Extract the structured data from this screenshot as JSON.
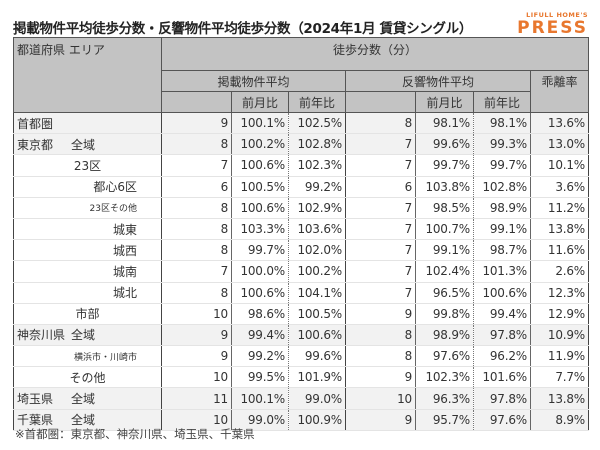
{
  "title": "掲載物件平均徒歩分数・反響物件平均徒歩分数（2024年1月 賃貸シングル）",
  "logo": {
    "small": "LIFULL HOME'S",
    "big": "PRESS",
    "color": "#e8772e"
  },
  "header": {
    "area": "都道府県 エリア",
    "walk": "徒歩分数（分）",
    "listing": "掲載物件平均",
    "response": "反響物件平均",
    "gap": "乖離率",
    "mom": "前月比",
    "yoy": "前年比"
  },
  "rows": [
    {
      "pref": "首都圏",
      "area": "",
      "listing": "9",
      "l_mom": "100.1%",
      "l_yoy": "102.5%",
      "response": "8",
      "r_mom": "98.1%",
      "r_yoy": "98.1%",
      "gap": "13.6%"
    },
    {
      "pref": "東京都",
      "area": "全域",
      "listing": "8",
      "l_mom": "100.2%",
      "l_yoy": "102.8%",
      "response": "7",
      "r_mom": "99.6%",
      "r_yoy": "99.3%",
      "gap": "13.0%"
    },
    {
      "pref": "",
      "area": "23区",
      "listing": "7",
      "l_mom": "100.6%",
      "l_yoy": "102.3%",
      "response": "7",
      "r_mom": "99.7%",
      "r_yoy": "99.7%",
      "gap": "10.1%"
    },
    {
      "pref": "",
      "area": "都心6区",
      "listing": "6",
      "l_mom": "100.5%",
      "l_yoy": "99.2%",
      "response": "6",
      "r_mom": "103.8%",
      "r_yoy": "102.8%",
      "gap": "3.6%"
    },
    {
      "pref": "",
      "area": "23区その他",
      "listing": "8",
      "l_mom": "100.6%",
      "l_yoy": "102.9%",
      "response": "7",
      "r_mom": "98.5%",
      "r_yoy": "98.9%",
      "gap": "11.2%"
    },
    {
      "pref": "",
      "area": "城東",
      "listing": "8",
      "l_mom": "103.3%",
      "l_yoy": "103.6%",
      "response": "7",
      "r_mom": "100.7%",
      "r_yoy": "99.1%",
      "gap": "13.8%"
    },
    {
      "pref": "",
      "area": "城西",
      "listing": "8",
      "l_mom": "99.7%",
      "l_yoy": "102.0%",
      "response": "7",
      "r_mom": "99.1%",
      "r_yoy": "98.7%",
      "gap": "11.6%"
    },
    {
      "pref": "",
      "area": "城南",
      "listing": "7",
      "l_mom": "100.0%",
      "l_yoy": "100.2%",
      "response": "7",
      "r_mom": "102.4%",
      "r_yoy": "101.3%",
      "gap": "2.6%"
    },
    {
      "pref": "",
      "area": "城北",
      "listing": "8",
      "l_mom": "100.6%",
      "l_yoy": "104.1%",
      "response": "7",
      "r_mom": "96.5%",
      "r_yoy": "100.6%",
      "gap": "12.3%"
    },
    {
      "pref": "",
      "area": "市部",
      "listing": "10",
      "l_mom": "98.6%",
      "l_yoy": "100.5%",
      "response": "9",
      "r_mom": "99.8%",
      "r_yoy": "99.4%",
      "gap": "12.9%"
    },
    {
      "pref": "神奈川県",
      "area": "全域",
      "listing": "9",
      "l_mom": "99.4%",
      "l_yoy": "100.6%",
      "response": "8",
      "r_mom": "98.9%",
      "r_yoy": "97.8%",
      "gap": "10.9%"
    },
    {
      "pref": "",
      "area": "横浜市・川崎市",
      "listing": "9",
      "l_mom": "99.2%",
      "l_yoy": "99.6%",
      "response": "8",
      "r_mom": "97.6%",
      "r_yoy": "96.2%",
      "gap": "11.9%"
    },
    {
      "pref": "",
      "area": "その他",
      "listing": "10",
      "l_mom": "99.5%",
      "l_yoy": "101.9%",
      "response": "9",
      "r_mom": "102.3%",
      "r_yoy": "101.6%",
      "gap": "7.7%"
    },
    {
      "pref": "埼玉県",
      "area": "全域",
      "listing": "11",
      "l_mom": "100.1%",
      "l_yoy": "99.0%",
      "response": "10",
      "r_mom": "96.3%",
      "r_yoy": "97.8%",
      "gap": "13.8%"
    },
    {
      "pref": "千葉県",
      "area": "全域",
      "listing": "10",
      "l_mom": "99.0%",
      "l_yoy": "100.9%",
      "response": "9",
      "r_mom": "95.7%",
      "r_yoy": "97.6%",
      "gap": "8.9%"
    }
  ],
  "note": "※首都圏：東京都、神奈川県、埼玉県、千葉県"
}
